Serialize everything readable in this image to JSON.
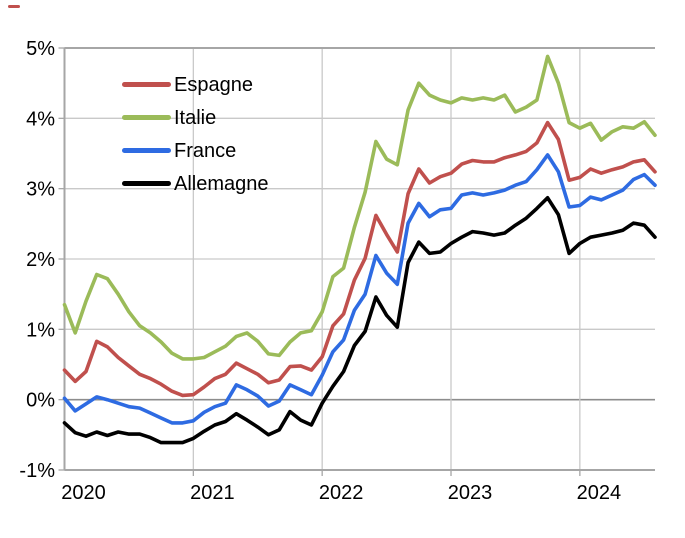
{
  "chart_data": {
    "type": "line",
    "title": "",
    "unit": "%",
    "description_of_x": "monthly points from 2020-01 to 2024-08",
    "x_tick_labels": [
      "2020",
      "2021",
      "2022",
      "2023",
      "2024"
    ],
    "x_tick_month_indices": [
      0,
      12,
      24,
      36,
      48
    ],
    "y_tick_labels": [
      "5%",
      "4%",
      "3%",
      "2%",
      "1%",
      "0%",
      "-1%"
    ],
    "y_tick_values": [
      5,
      4,
      3,
      2,
      1,
      0,
      -1
    ],
    "ylim": [
      -1,
      5
    ],
    "grid": true,
    "legend_position": "top-left-inside",
    "colors": {
      "grid": "#C9C9C9",
      "zero_line": "#8C8C8C",
      "border": "#A6A6A6",
      "text": "#000000",
      "artifact_dash": "#C0504D"
    },
    "series": [
      {
        "name": "Espagne",
        "color": "#C0504D",
        "values": [
          0.42,
          0.26,
          0.4,
          0.83,
          0.75,
          0.6,
          0.48,
          0.36,
          0.3,
          0.22,
          0.12,
          0.06,
          0.07,
          0.18,
          0.3,
          0.36,
          0.52,
          0.44,
          0.36,
          0.24,
          0.28,
          0.47,
          0.48,
          0.42,
          0.61,
          1.05,
          1.22,
          1.7,
          2.01,
          2.62,
          2.35,
          2.1,
          2.93,
          3.28,
          3.08,
          3.17,
          3.22,
          3.35,
          3.4,
          3.38,
          3.38,
          3.44,
          3.48,
          3.53,
          3.65,
          3.94,
          3.7,
          3.12,
          3.16,
          3.28,
          3.22,
          3.27,
          3.31,
          3.38,
          3.41,
          3.24
        ]
      },
      {
        "name": "Italie",
        "color": "#9BBB59",
        "values": [
          1.35,
          0.95,
          1.4,
          1.78,
          1.72,
          1.5,
          1.25,
          1.05,
          0.95,
          0.82,
          0.66,
          0.58,
          0.58,
          0.6,
          0.68,
          0.76,
          0.9,
          0.95,
          0.83,
          0.65,
          0.63,
          0.82,
          0.95,
          0.98,
          1.25,
          1.75,
          1.87,
          2.45,
          2.95,
          3.67,
          3.42,
          3.34,
          4.12,
          4.5,
          4.33,
          4.26,
          4.22,
          4.29,
          4.26,
          4.29,
          4.26,
          4.33,
          4.09,
          4.16,
          4.26,
          4.88,
          4.5,
          3.94,
          3.86,
          3.93,
          3.69,
          3.81,
          3.88,
          3.86,
          3.95,
          3.76
        ]
      },
      {
        "name": "France",
        "color": "#2E6BE2",
        "values": [
          0.02,
          -0.16,
          -0.06,
          0.04,
          0.0,
          -0.05,
          -0.1,
          -0.12,
          -0.19,
          -0.26,
          -0.33,
          -0.33,
          -0.3,
          -0.18,
          -0.1,
          -0.05,
          0.21,
          0.14,
          0.05,
          -0.09,
          -0.02,
          0.21,
          0.14,
          0.07,
          0.35,
          0.68,
          0.85,
          1.27,
          1.5,
          2.05,
          1.8,
          1.64,
          2.51,
          2.79,
          2.6,
          2.7,
          2.72,
          2.91,
          2.94,
          2.91,
          2.94,
          2.98,
          3.05,
          3.1,
          3.27,
          3.48,
          3.24,
          2.74,
          2.76,
          2.88,
          2.84,
          2.91,
          2.98,
          3.13,
          3.2,
          3.05
        ]
      },
      {
        "name": "Allemagne",
        "color": "#000000",
        "values": [
          -0.33,
          -0.47,
          -0.52,
          -0.46,
          -0.51,
          -0.46,
          -0.49,
          -0.49,
          -0.54,
          -0.61,
          -0.61,
          -0.61,
          -0.55,
          -0.45,
          -0.36,
          -0.31,
          -0.2,
          -0.29,
          -0.39,
          -0.5,
          -0.43,
          -0.17,
          -0.29,
          -0.36,
          -0.05,
          0.19,
          0.4,
          0.77,
          0.97,
          1.46,
          1.2,
          1.03,
          1.95,
          2.24,
          2.08,
          2.1,
          2.22,
          2.31,
          2.39,
          2.37,
          2.34,
          2.37,
          2.48,
          2.58,
          2.72,
          2.87,
          2.63,
          2.08,
          2.22,
          2.31,
          2.34,
          2.37,
          2.41,
          2.51,
          2.48,
          2.31
        ]
      }
    ]
  }
}
